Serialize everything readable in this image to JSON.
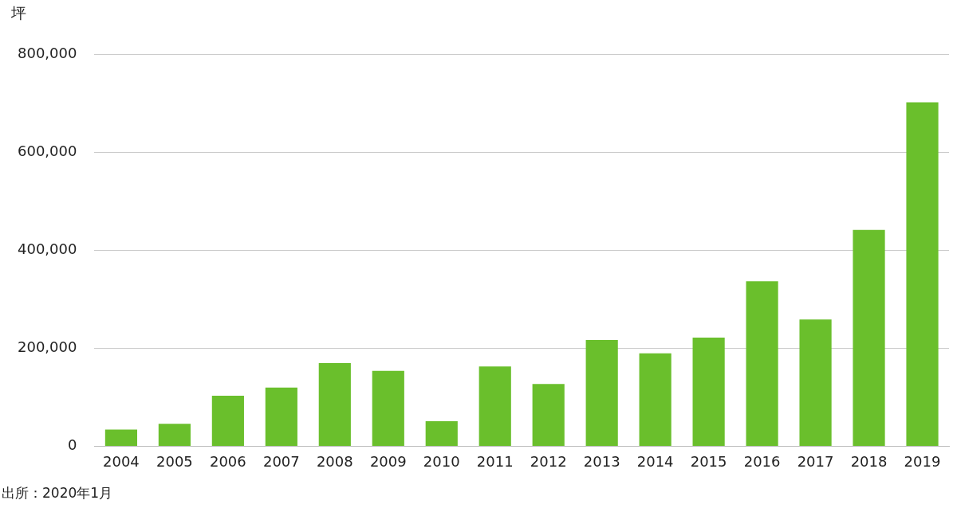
{
  "chart_data": {
    "type": "bar",
    "ylabel": "坪",
    "categories": [
      "2004",
      "2005",
      "2006",
      "2007",
      "2008",
      "2009",
      "2010",
      "2011",
      "2012",
      "2013",
      "2014",
      "2015",
      "2016",
      "2017",
      "2018",
      "2019"
    ],
    "values": [
      34000,
      46000,
      103000,
      120000,
      170000,
      154000,
      51000,
      163000,
      127000,
      217000,
      190000,
      222000,
      337000,
      259000,
      442000,
      703000
    ],
    "color": "#6abf2c",
    "ylim": [
      0,
      800000
    ],
    "yticks": [
      {
        "value": 0,
        "label": "0"
      },
      {
        "value": 200000,
        "label": "200,000"
      },
      {
        "value": 400000,
        "label": "400,000"
      },
      {
        "value": 600000,
        "label": "600,000"
      },
      {
        "value": 800000,
        "label": "800,000"
      }
    ],
    "grid": "y",
    "annotations": [
      "出所：2020年1月"
    ]
  }
}
